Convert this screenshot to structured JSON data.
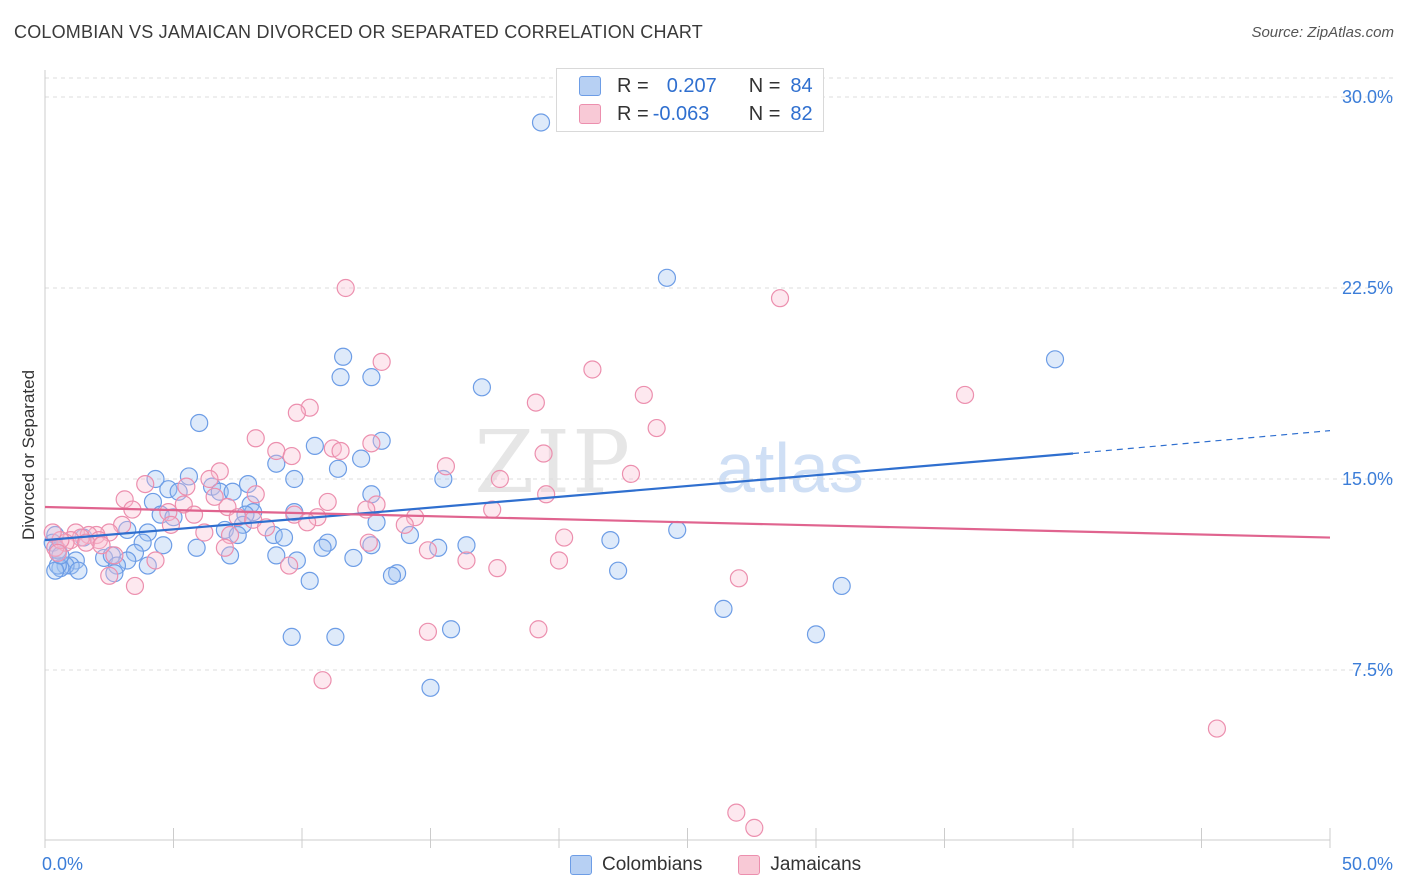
{
  "header": {
    "title": "COLOMBIAN VS JAMAICAN DIVORCED OR SEPARATED CORRELATION CHART",
    "source": "Source: ZipAtlas.com"
  },
  "legend_top": {
    "rows": [
      {
        "r_label": "R =",
        "r_value": "0.207",
        "n_label": "N =",
        "n_value": "84",
        "color": "#6d9de6"
      },
      {
        "r_label": "R =",
        "r_value": "-0.063",
        "n_label": "N =",
        "n_value": "82",
        "color": "#ec8fae"
      }
    ]
  },
  "bottom_legend": {
    "items": [
      {
        "label": "Colombians",
        "color": "#6d9de6"
      },
      {
        "label": "Jamaicans",
        "color": "#ec8fae"
      }
    ]
  },
  "watermark": {
    "zip": "ZIP",
    "atlas": "atlas"
  },
  "chart_data": {
    "type": "scatter",
    "title": "COLOMBIAN VS JAMAICAN DIVORCED OR SEPARATED CORRELATION CHART",
    "xlabel": "",
    "ylabel": "Divorced or Separated",
    "xlim": [
      0,
      50
    ],
    "ylim": [
      0,
      31
    ],
    "x_tick_labels": [
      "0.0%",
      "50.0%"
    ],
    "y_ticks": [
      7.5,
      15.0,
      22.5,
      30.0
    ],
    "y_tick_labels": [
      "7.5%",
      "15.0%",
      "22.5%",
      "30.0%"
    ],
    "grid": true,
    "legend_placement": "top-center",
    "series": [
      {
        "name": "Colombians",
        "color": "#6d9de6",
        "trend": {
          "x0": 0,
          "y0": 12.6,
          "x1": 40,
          "y1": 16.0,
          "dash_x1": 50,
          "dash_y1": 16.9
        },
        "points": [
          [
            19.3,
            29.0
          ],
          [
            24.2,
            22.9
          ],
          [
            39.3,
            19.7
          ],
          [
            11.6,
            19.8
          ],
          [
            11.5,
            19.0
          ],
          [
            12.7,
            19.0
          ],
          [
            17.0,
            18.6
          ],
          [
            6.0,
            17.2
          ],
          [
            13.1,
            16.5
          ],
          [
            10.5,
            16.3
          ],
          [
            12.3,
            15.8
          ],
          [
            9.0,
            15.6
          ],
          [
            11.4,
            15.4
          ],
          [
            4.3,
            15.0
          ],
          [
            5.6,
            15.1
          ],
          [
            9.7,
            15.0
          ],
          [
            15.5,
            15.0
          ],
          [
            7.9,
            14.8
          ],
          [
            4.8,
            14.6
          ],
          [
            6.5,
            14.7
          ],
          [
            5.2,
            14.5
          ],
          [
            6.8,
            14.5
          ],
          [
            7.3,
            14.5
          ],
          [
            12.7,
            14.4
          ],
          [
            4.2,
            14.1
          ],
          [
            8.0,
            14.0
          ],
          [
            8.1,
            13.7
          ],
          [
            7.8,
            13.6
          ],
          [
            9.7,
            13.7
          ],
          [
            4.5,
            13.6
          ],
          [
            5.0,
            13.5
          ],
          [
            7.7,
            13.2
          ],
          [
            12.9,
            13.3
          ],
          [
            3.2,
            13.0
          ],
          [
            4.0,
            12.9
          ],
          [
            7.0,
            13.0
          ],
          [
            7.5,
            12.8
          ],
          [
            8.9,
            12.8
          ],
          [
            14.2,
            12.8
          ],
          [
            24.6,
            13.0
          ],
          [
            1.5,
            12.7
          ],
          [
            3.8,
            12.5
          ],
          [
            4.6,
            12.4
          ],
          [
            5.9,
            12.3
          ],
          [
            9.3,
            12.7
          ],
          [
            11.0,
            12.5
          ],
          [
            10.8,
            12.3
          ],
          [
            12.7,
            12.4
          ],
          [
            15.3,
            12.3
          ],
          [
            16.4,
            12.4
          ],
          [
            22.0,
            12.6
          ],
          [
            9.0,
            12.0
          ],
          [
            7.2,
            12.0
          ],
          [
            3.5,
            12.1
          ],
          [
            2.3,
            11.9
          ],
          [
            2.6,
            12.0
          ],
          [
            1.2,
            11.8
          ],
          [
            3.2,
            11.8
          ],
          [
            4.0,
            11.6
          ],
          [
            2.8,
            11.6
          ],
          [
            9.8,
            11.8
          ],
          [
            12.0,
            11.9
          ],
          [
            1.0,
            11.6
          ],
          [
            0.8,
            11.6
          ],
          [
            0.6,
            11.5
          ],
          [
            1.3,
            11.4
          ],
          [
            0.5,
            11.6
          ],
          [
            0.4,
            11.4
          ],
          [
            2.7,
            11.3
          ],
          [
            13.7,
            11.3
          ],
          [
            13.5,
            11.2
          ],
          [
            10.3,
            11.0
          ],
          [
            22.3,
            11.4
          ],
          [
            31.0,
            10.8
          ],
          [
            26.4,
            9.9
          ],
          [
            15.8,
            9.1
          ],
          [
            9.6,
            8.8
          ],
          [
            11.3,
            8.8
          ],
          [
            30.0,
            8.9
          ],
          [
            15.0,
            6.8
          ],
          [
            0.4,
            12.8
          ],
          [
            0.3,
            12.5
          ],
          [
            0.5,
            12.2
          ],
          [
            0.6,
            12.0
          ]
        ]
      },
      {
        "name": "Jamaicans",
        "color": "#ec8fae",
        "trend": {
          "x0": 0,
          "y0": 13.9,
          "x1": 50,
          "y1": 12.7
        },
        "points": [
          [
            11.7,
            22.5
          ],
          [
            28.6,
            22.1
          ],
          [
            13.1,
            19.6
          ],
          [
            21.3,
            19.3
          ],
          [
            23.3,
            18.3
          ],
          [
            35.8,
            18.3
          ],
          [
            19.1,
            18.0
          ],
          [
            10.3,
            17.8
          ],
          [
            9.8,
            17.6
          ],
          [
            23.8,
            17.0
          ],
          [
            8.2,
            16.6
          ],
          [
            12.7,
            16.4
          ],
          [
            11.2,
            16.2
          ],
          [
            11.5,
            16.1
          ],
          [
            9.0,
            16.1
          ],
          [
            19.4,
            16.0
          ],
          [
            9.6,
            15.9
          ],
          [
            15.6,
            15.5
          ],
          [
            6.8,
            15.3
          ],
          [
            22.8,
            15.2
          ],
          [
            17.7,
            15.0
          ],
          [
            6.4,
            15.0
          ],
          [
            3.9,
            14.8
          ],
          [
            5.5,
            14.7
          ],
          [
            8.2,
            14.4
          ],
          [
            6.6,
            14.3
          ],
          [
            3.1,
            14.2
          ],
          [
            19.5,
            14.4
          ],
          [
            11.0,
            14.1
          ],
          [
            12.9,
            14.0
          ],
          [
            5.4,
            14.0
          ],
          [
            7.1,
            13.9
          ],
          [
            3.4,
            13.8
          ],
          [
            17.4,
            13.8
          ],
          [
            12.5,
            13.8
          ],
          [
            4.8,
            13.7
          ],
          [
            5.8,
            13.6
          ],
          [
            9.7,
            13.6
          ],
          [
            7.5,
            13.5
          ],
          [
            10.6,
            13.5
          ],
          [
            14.4,
            13.5
          ],
          [
            8.1,
            13.4
          ],
          [
            10.2,
            13.3
          ],
          [
            14.0,
            13.2
          ],
          [
            3.0,
            13.2
          ],
          [
            4.9,
            13.2
          ],
          [
            2.5,
            12.9
          ],
          [
            7.2,
            12.8
          ],
          [
            2.0,
            12.8
          ],
          [
            1.2,
            12.9
          ],
          [
            1.7,
            12.8
          ],
          [
            2.1,
            12.6
          ],
          [
            1.4,
            12.7
          ],
          [
            20.2,
            12.7
          ],
          [
            1.0,
            12.6
          ],
          [
            0.8,
            12.5
          ],
          [
            12.6,
            12.5
          ],
          [
            7.0,
            12.3
          ],
          [
            14.9,
            12.2
          ],
          [
            2.7,
            12.0
          ],
          [
            16.4,
            11.8
          ],
          [
            20.0,
            11.8
          ],
          [
            4.3,
            11.8
          ],
          [
            9.5,
            11.6
          ],
          [
            17.6,
            11.5
          ],
          [
            2.5,
            11.2
          ],
          [
            27.0,
            11.1
          ],
          [
            3.5,
            10.8
          ],
          [
            19.2,
            9.1
          ],
          [
            14.9,
            9.0
          ],
          [
            10.8,
            7.1
          ],
          [
            45.6,
            5.2
          ],
          [
            26.9,
            1.9
          ],
          [
            27.6,
            1.3
          ],
          [
            0.4,
            12.3
          ],
          [
            0.6,
            12.6
          ],
          [
            0.3,
            12.9
          ],
          [
            0.5,
            12.1
          ],
          [
            1.6,
            12.5
          ],
          [
            2.2,
            12.4
          ],
          [
            6.2,
            12.9
          ],
          [
            8.6,
            13.1
          ]
        ]
      }
    ]
  }
}
